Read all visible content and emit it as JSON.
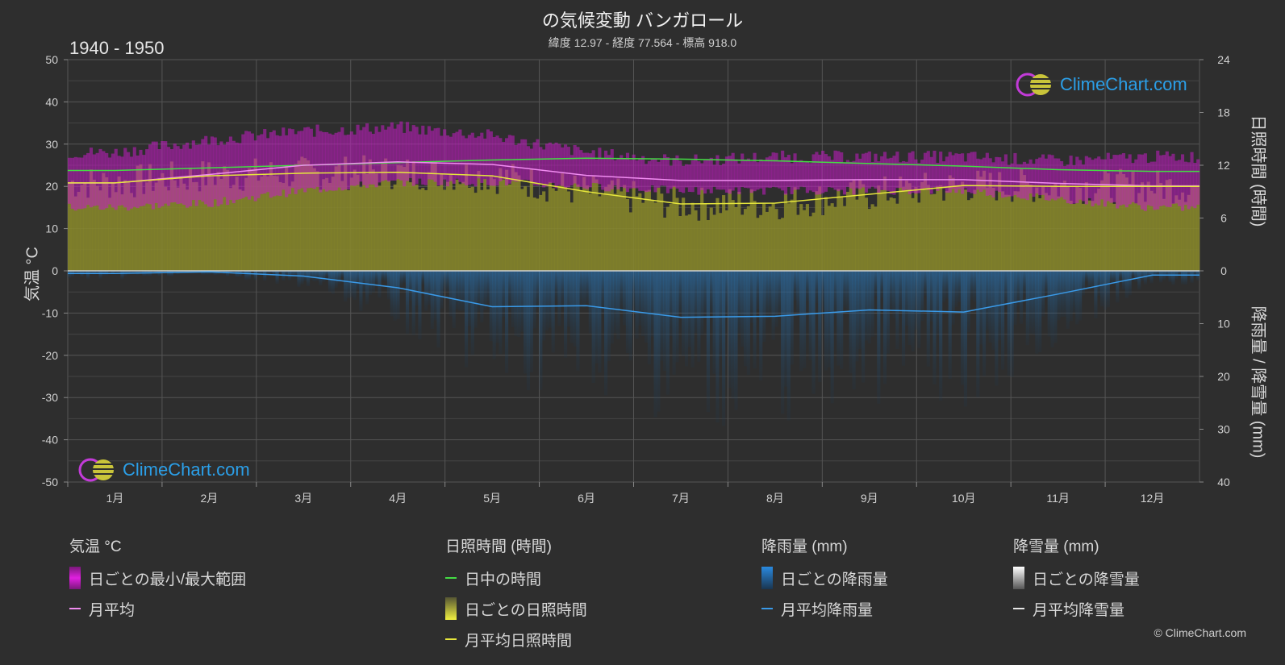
{
  "header": {
    "title": "の気候変動 バンガロール",
    "subtitle": "緯度 12.97 - 経度 77.564 - 標高 918.0",
    "year_range": "1940 - 1950"
  },
  "axes": {
    "left_title": "気温 °C",
    "right_top_title": "日照時間 (時間)",
    "right_bottom_title": "降雨量 / 降雪量 (mm)",
    "left_ticks": [
      "50",
      "40",
      "30",
      "20",
      "10",
      "0",
      "-10",
      "-20",
      "-30",
      "-40",
      "-50"
    ],
    "right_top_ticks": [
      "24",
      "18",
      "12",
      "6",
      "0"
    ],
    "right_bottom_ticks": [
      "10",
      "20",
      "30",
      "40"
    ],
    "months": [
      "1月",
      "2月",
      "3月",
      "4月",
      "5月",
      "6月",
      "7月",
      "8月",
      "9月",
      "10月",
      "11月",
      "12月"
    ]
  },
  "logo": {
    "text": "ClimeChart.com"
  },
  "legend": {
    "temperature": {
      "title": "気温 °C",
      "range_label": "日ごとの最小/最大範囲",
      "mean_label": "月平均"
    },
    "sunshine": {
      "title": "日照時間 (時間)",
      "daylight_label": "日中の時間",
      "daily_label": "日ごとの日照時間",
      "mean_label": "月平均日照時間"
    },
    "rain": {
      "title": "降雨量 (mm)",
      "daily_label": "日ごとの降雨量",
      "mean_label": "月平均降雨量"
    },
    "snow": {
      "title": "降雪量 (mm)",
      "daily_label": "日ごとの降雪量",
      "mean_label": "月平均降雪量"
    }
  },
  "copyright": "© ClimeChart.com",
  "colors": {
    "background": "#2e2e2e",
    "temp_range": "#c21ec2",
    "temp_mean": "#f08cf0",
    "daylight": "#44dd44",
    "sunshine_fill": "#8a8a2a",
    "sunshine_mean": "#e6e63c",
    "rain": "#2b8fd8",
    "rain_mean": "#3a9ae8",
    "snow_mean": "#e6e6e6"
  },
  "chart_data": {
    "type": "area",
    "x_categories": [
      "1月",
      "2月",
      "3月",
      "4月",
      "5月",
      "6月",
      "7月",
      "8月",
      "9月",
      "10月",
      "11月",
      "12月"
    ],
    "temp_ylim": [
      -50,
      50
    ],
    "sunshine_ylim": [
      0,
      24
    ],
    "precip_ylim": [
      0,
      40
    ],
    "series": [
      {
        "name": "日ごとの最小/最大範囲",
        "min": [
          15,
          16,
          19,
          21,
          21,
          20,
          19,
          19,
          19,
          19,
          17,
          15
        ],
        "max": [
          28,
          31,
          33,
          34,
          32,
          28,
          26,
          27,
          27,
          27,
          26,
          27
        ]
      },
      {
        "name": "月平均",
        "values": [
          20.8,
          22.8,
          25.0,
          25.8,
          25.2,
          22.6,
          21.4,
          21.4,
          21.6,
          21.6,
          20.7,
          20.1
        ]
      },
      {
        "name": "日中の時間",
        "values": [
          11.4,
          11.7,
          12.0,
          12.3,
          12.6,
          12.8,
          12.7,
          12.5,
          12.2,
          11.9,
          11.5,
          11.3
        ]
      },
      {
        "name": "月平均日照時間",
        "values": [
          10.0,
          10.8,
          11.1,
          11.2,
          10.8,
          9.0,
          7.6,
          7.7,
          8.7,
          9.7,
          9.6,
          9.6
        ]
      },
      {
        "name": "月平均降雨量",
        "values": [
          0.5,
          0.2,
          1.0,
          3.2,
          6.8,
          6.6,
          8.8,
          8.6,
          7.4,
          7.8,
          4.4,
          0.8
        ]
      },
      {
        "name": "月平均降雪量",
        "values": [
          0,
          0,
          0,
          0,
          0,
          0,
          0,
          0,
          0,
          0,
          0,
          0
        ]
      }
    ]
  }
}
